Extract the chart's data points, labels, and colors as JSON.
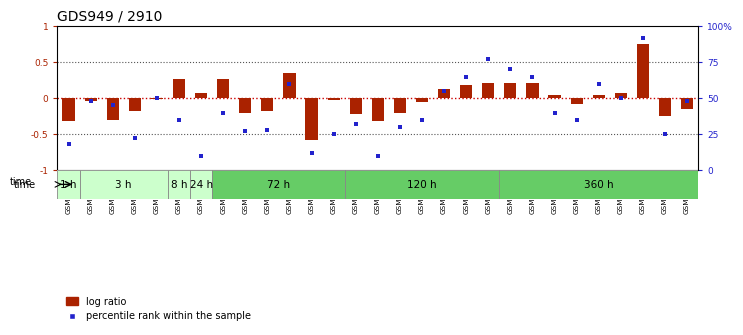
{
  "title": "GDS949 / 2910",
  "samples": [
    "GSM22838",
    "GSM22839",
    "GSM22840",
    "GSM22841",
    "GSM22842",
    "GSM22843",
    "GSM22844",
    "GSM22845",
    "GSM22846",
    "GSM22847",
    "GSM22848",
    "GSM22849",
    "GSM22850",
    "GSM22851",
    "GSM22852",
    "GSM22853",
    "GSM22854",
    "GSM22855",
    "GSM22856",
    "GSM22857",
    "GSM22858",
    "GSM22859",
    "GSM22860",
    "GSM22861",
    "GSM22862",
    "GSM22863",
    "GSM22864",
    "GSM22865",
    "GSM22866"
  ],
  "log_ratio": [
    -0.32,
    -0.04,
    -0.3,
    -0.18,
    -0.01,
    0.27,
    0.07,
    0.27,
    -0.2,
    -0.18,
    0.35,
    -0.58,
    -0.03,
    -0.22,
    -0.32,
    -0.2,
    -0.06,
    0.13,
    0.18,
    0.21,
    0.21,
    0.21,
    0.05,
    -0.08,
    0.05,
    0.07,
    0.75,
    -0.25,
    -0.15
  ],
  "percentile": [
    18,
    48,
    45,
    22,
    50,
    35,
    10,
    40,
    27,
    28,
    60,
    12,
    25,
    32,
    10,
    30,
    35,
    55,
    65,
    77,
    70,
    65,
    40,
    35,
    60,
    50,
    92,
    25,
    48
  ],
  "time_groups": [
    {
      "label": "1 h",
      "start": 0,
      "end": 1,
      "light": true
    },
    {
      "label": "3 h",
      "start": 1,
      "end": 5,
      "light": true
    },
    {
      "label": "8 h",
      "start": 5,
      "end": 6,
      "light": true
    },
    {
      "label": "24 h",
      "start": 6,
      "end": 7,
      "light": true
    },
    {
      "label": "72 h",
      "start": 7,
      "end": 13,
      "light": false
    },
    {
      "label": "120 h",
      "start": 13,
      "end": 20,
      "light": false
    },
    {
      "label": "360 h",
      "start": 20,
      "end": 29,
      "light": false
    }
  ],
  "light_green": "#ccffcc",
  "dark_green": "#66cc66",
  "bar_color": "#aa2200",
  "dot_color": "#2222cc",
  "zero_line_color": "#cc0000",
  "hline_color": "#555555",
  "background_color": "#ffffff",
  "ylim": [
    -1.0,
    1.0
  ],
  "yticks_left": [
    -1.0,
    -0.5,
    0.0,
    0.5,
    1.0
  ],
  "yticks_left_labels": [
    "-1",
    "-0.5",
    "0",
    "0.5",
    "1"
  ],
  "yticks_right": [
    0,
    25,
    50,
    75,
    100
  ],
  "yticks_right_labels": [
    "0",
    "25",
    "50",
    "75",
    "100%"
  ],
  "title_fontsize": 10,
  "tick_fontsize": 6.5,
  "sample_fontsize": 5.2,
  "legend_items": [
    "log ratio",
    "percentile rank within the sample"
  ]
}
